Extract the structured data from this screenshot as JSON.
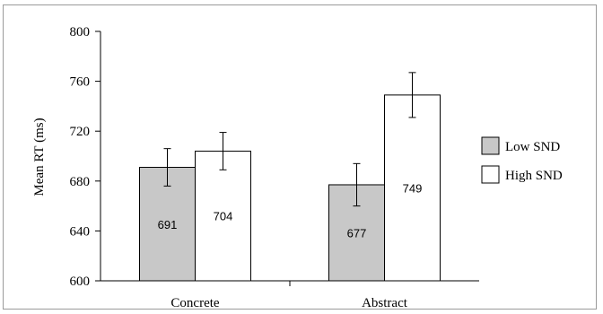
{
  "chart_data": {
    "type": "bar",
    "ylabel": "Mean RT (ms)",
    "xlabel": "",
    "ylim": [
      600,
      800
    ],
    "yticks": [
      600,
      640,
      680,
      720,
      760,
      800
    ],
    "categories": [
      "Concrete",
      "Abstract"
    ],
    "series": [
      {
        "name": "Low SND",
        "color": "#c8c8c8",
        "values": [
          691,
          677
        ],
        "labels": [
          "691",
          "677"
        ],
        "error": [
          15,
          17
        ]
      },
      {
        "name": "High SND",
        "color": "#ffffff",
        "values": [
          704,
          749
        ],
        "labels": [
          "704",
          "749"
        ],
        "error": [
          15,
          18
        ]
      }
    ],
    "legend_position": "right",
    "grid": false
  }
}
